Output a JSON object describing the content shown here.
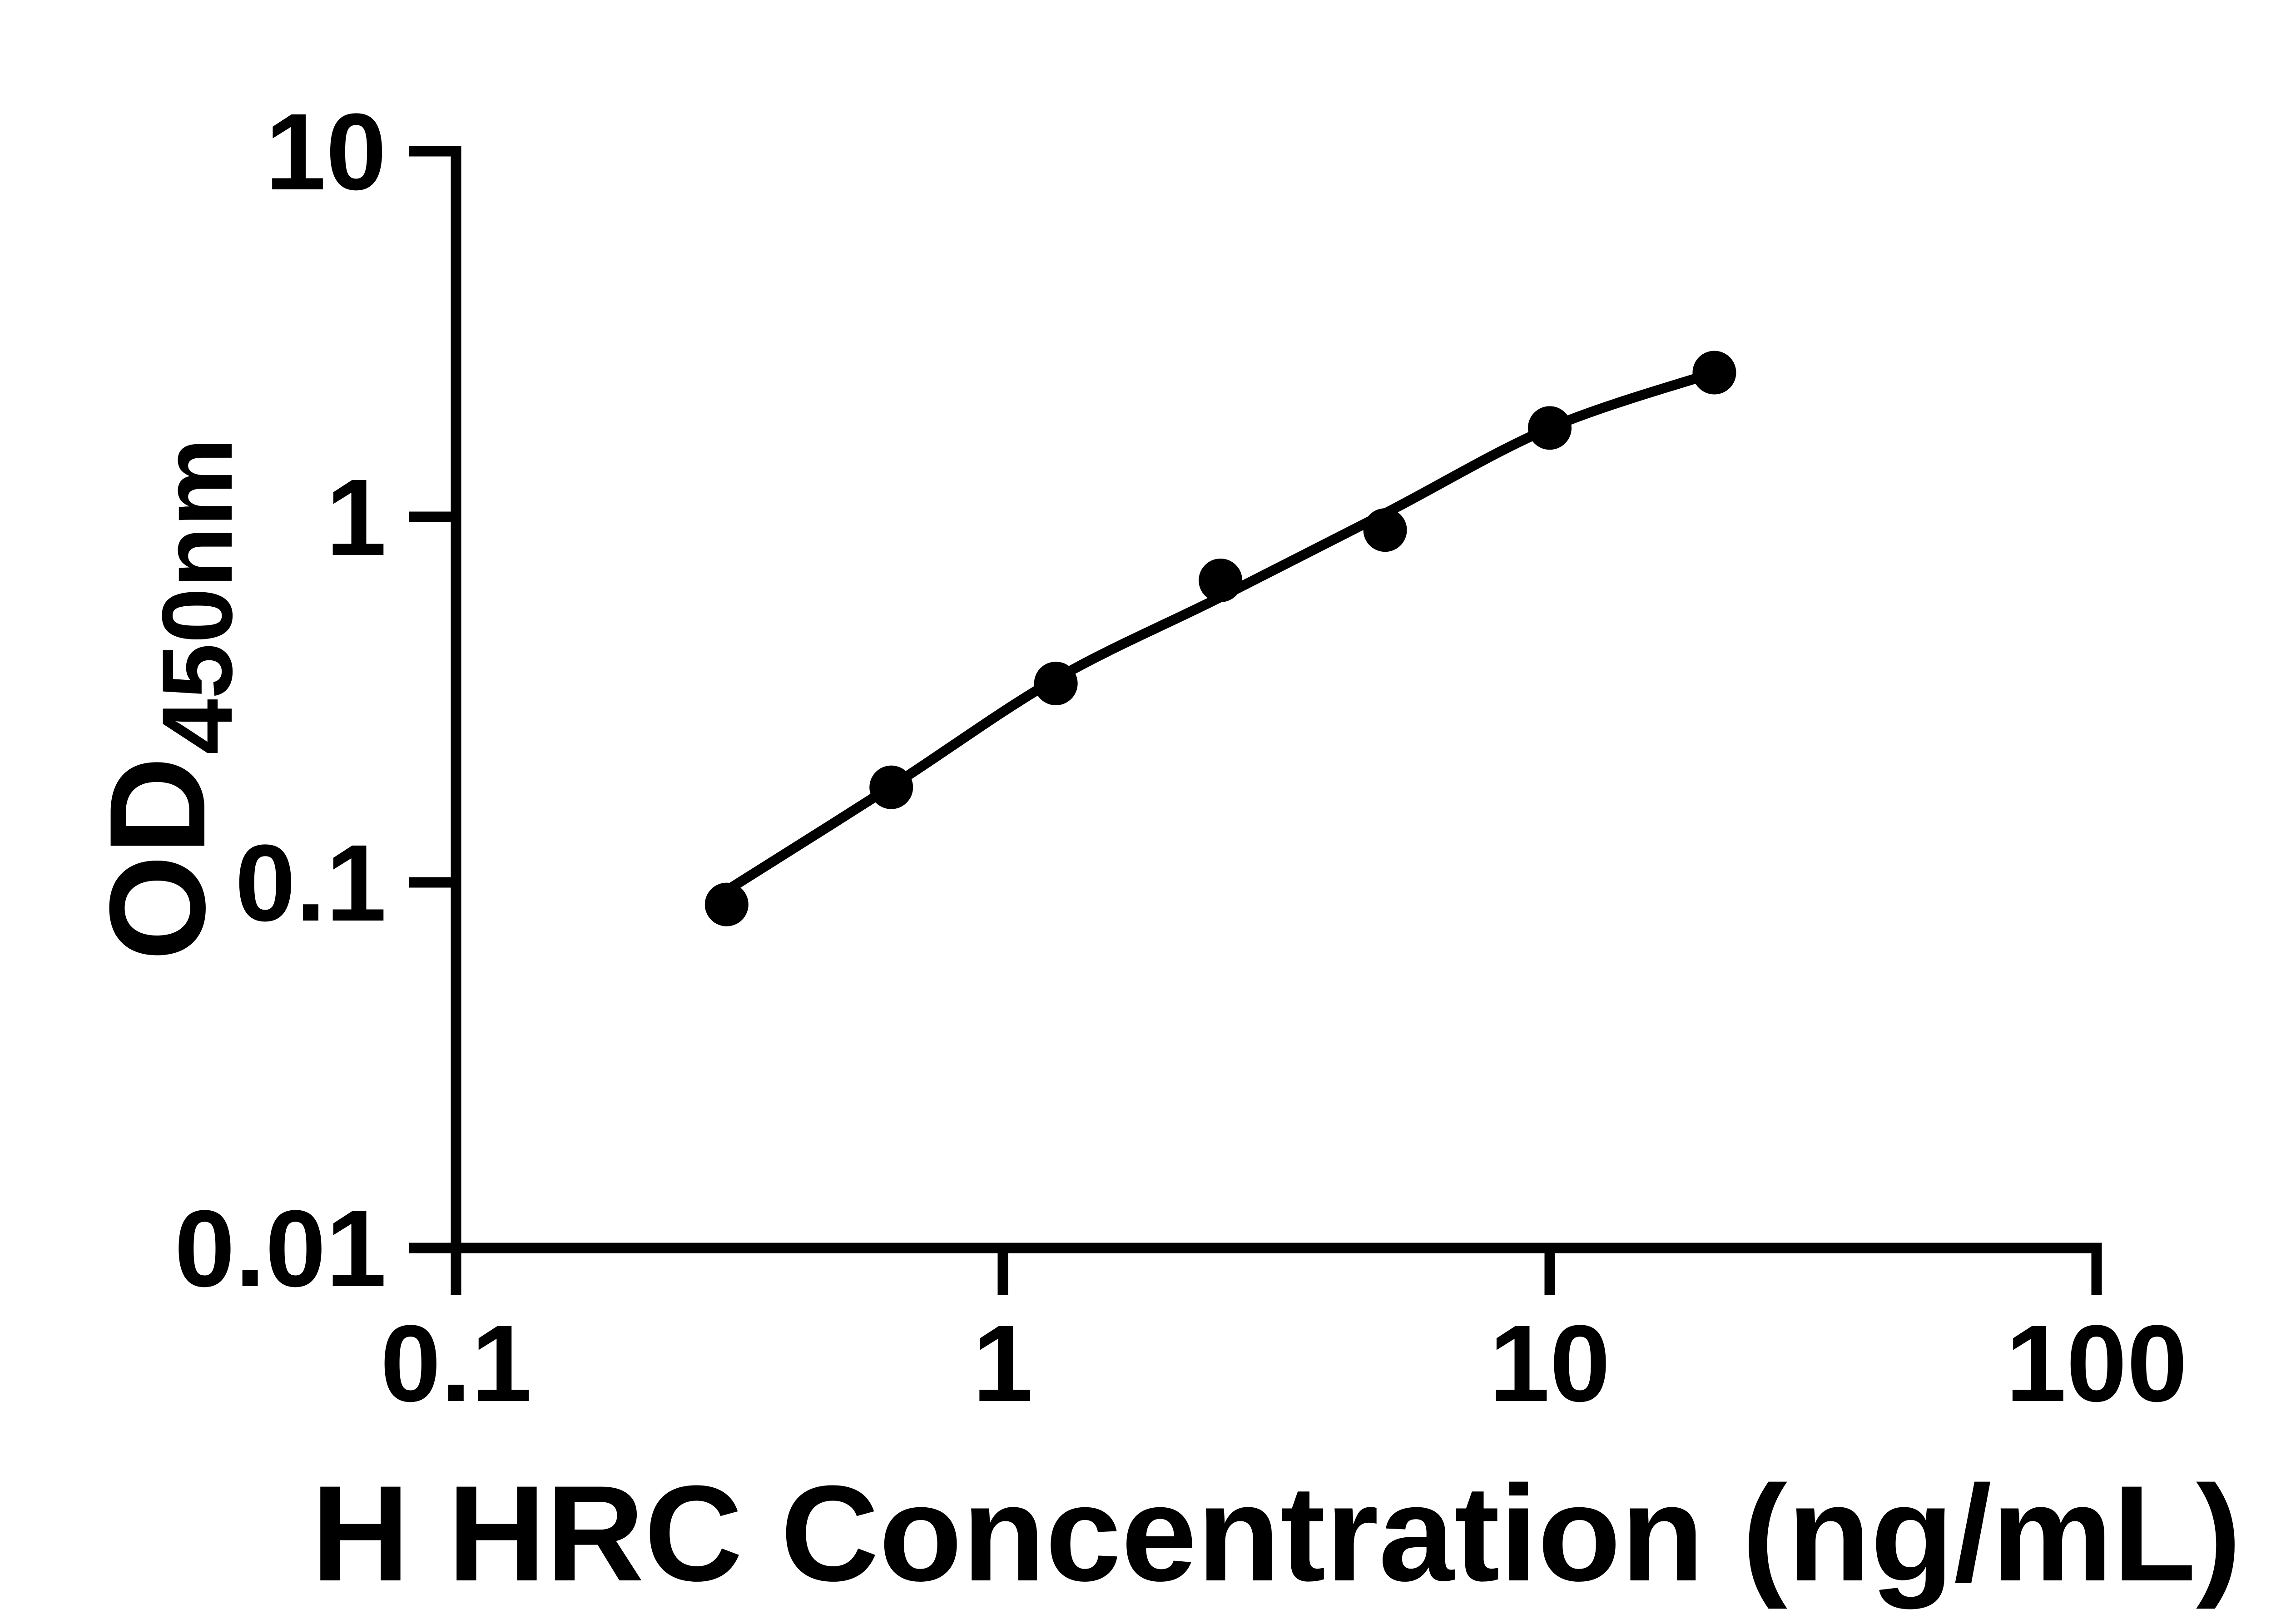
{
  "figure": {
    "background_color": "#ffffff",
    "ink_color": "#000000"
  },
  "chart_data": {
    "type": "scatter",
    "title": "",
    "xlabel": "H HRC Concentration (ng/mL)",
    "ylabel": "OD450nm",
    "ylabel_main": "OD",
    "ylabel_sub": "450nm",
    "x_scale": "log10",
    "y_scale": "log10",
    "xlim": [
      0.1,
      100
    ],
    "ylim": [
      0.01,
      10
    ],
    "x_ticks": {
      "values": [
        0.1,
        1,
        10,
        100
      ],
      "labels": [
        "0.1",
        "1",
        "10",
        "100"
      ]
    },
    "y_ticks": {
      "values": [
        0.01,
        0.1,
        1,
        10
      ],
      "labels": [
        "0.01",
        "0.1",
        "1",
        "10"
      ]
    },
    "grid": "off",
    "legend": "none",
    "series": [
      {
        "name": "standard-curve-points",
        "marker": "filled-circle",
        "color": "#000000",
        "points": [
          {
            "x": 0.3125,
            "y": 0.087
          },
          {
            "x": 0.625,
            "y": 0.182
          },
          {
            "x": 1.25,
            "y": 0.35
          },
          {
            "x": 2.5,
            "y": 0.67
          },
          {
            "x": 5,
            "y": 0.92
          },
          {
            "x": 10,
            "y": 1.75
          },
          {
            "x": 20,
            "y": 2.48
          }
        ]
      }
    ],
    "fit_curve": {
      "name": "fit-line",
      "color": "#000000",
      "points": [
        {
          "x": 0.3125,
          "y": 0.095
        },
        {
          "x": 0.625,
          "y": 0.183
        },
        {
          "x": 1.25,
          "y": 0.36
        },
        {
          "x": 2.5,
          "y": 0.603
        },
        {
          "x": 5,
          "y": 1.022
        },
        {
          "x": 10,
          "y": 1.75
        },
        {
          "x": 20,
          "y": 2.48
        }
      ]
    }
  }
}
